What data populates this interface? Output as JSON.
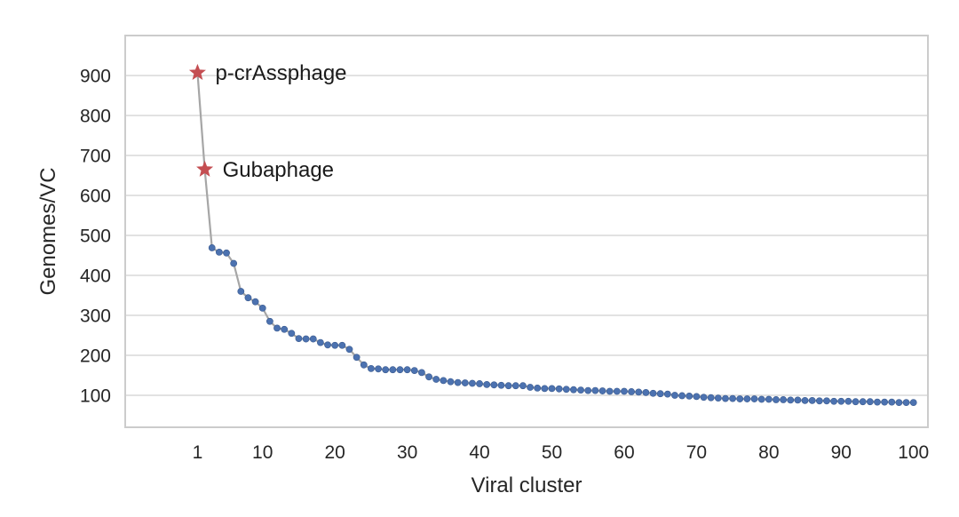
{
  "chart_data": {
    "type": "line",
    "title": "",
    "xlabel": "Viral cluster",
    "ylabel": "Genomes/VC",
    "xlim": [
      -9,
      102
    ],
    "ylim": [
      20,
      1000
    ],
    "xticks": [
      1,
      10,
      20,
      30,
      40,
      50,
      60,
      70,
      80,
      90,
      100
    ],
    "yticks": [
      100,
      200,
      300,
      400,
      500,
      600,
      700,
      800,
      900
    ],
    "grid": "horizontal",
    "x": [
      1,
      2,
      3,
      4,
      5,
      6,
      7,
      8,
      9,
      10,
      11,
      12,
      13,
      14,
      15,
      16,
      17,
      18,
      19,
      20,
      21,
      22,
      23,
      24,
      25,
      26,
      27,
      28,
      29,
      30,
      31,
      32,
      33,
      34,
      35,
      36,
      37,
      38,
      39,
      40,
      41,
      42,
      43,
      44,
      45,
      46,
      47,
      48,
      49,
      50,
      51,
      52,
      53,
      54,
      55,
      56,
      57,
      58,
      59,
      60,
      61,
      62,
      63,
      64,
      65,
      66,
      67,
      68,
      69,
      70,
      71,
      72,
      73,
      74,
      75,
      76,
      77,
      78,
      79,
      80,
      81,
      82,
      83,
      84,
      85,
      86,
      87,
      88,
      89,
      90,
      91,
      92,
      93,
      94,
      95,
      96,
      97,
      98,
      99,
      100
    ],
    "y": [
      907,
      665,
      469,
      458,
      456,
      430,
      360,
      344,
      334,
      318,
      285,
      268,
      265,
      255,
      242,
      241,
      241,
      232,
      226,
      225,
      225,
      215,
      195,
      176,
      167,
      166,
      164,
      164,
      164,
      164,
      162,
      157,
      146,
      140,
      137,
      134,
      132,
      131,
      130,
      129,
      127,
      126,
      125,
      124,
      124,
      124,
      120,
      118,
      117,
      117,
      116,
      115,
      114,
      113,
      112,
      112,
      111,
      110,
      110,
      110,
      109,
      108,
      107,
      105,
      104,
      103,
      100,
      99,
      98,
      97,
      95,
      94,
      93,
      92,
      92,
      91,
      91,
      91,
      90,
      90,
      89,
      89,
      88,
      88,
      87,
      87,
      86,
      86,
      85,
      85,
      85,
      84,
      84,
      84,
      83,
      83,
      83,
      82,
      82,
      82
    ],
    "line_color": "#a6a6a6",
    "marker_color": "#4c72b0",
    "highlights": [
      {
        "x": 1,
        "y": 907,
        "label": "p-crAssphage",
        "color": "#c44e52"
      },
      {
        "x": 2,
        "y": 665,
        "label": "Gubaphage",
        "color": "#c44e52"
      }
    ]
  }
}
